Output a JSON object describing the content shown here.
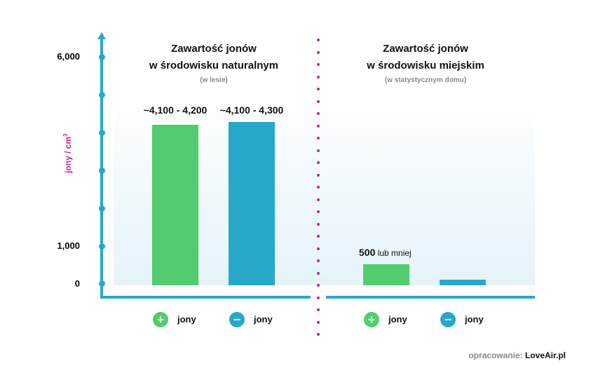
{
  "chart_data": {
    "type": "bar",
    "ylabel": "jony / cm³",
    "yticks": [
      "0",
      "1,000",
      "6,000"
    ],
    "ylim": [
      0,
      6000
    ],
    "panels": [
      {
        "title": "Zawartość jonów w środowisku naturalnym",
        "subtitle": "(w lesie)",
        "categories": [
          "+ jony",
          "− jony"
        ],
        "values": [
          4150,
          4200
        ],
        "labels": [
          "~4,100 - 4,200",
          "~4,100 - 4,300"
        ]
      },
      {
        "title": "Zawartość jonów w środowisku miejskim",
        "subtitle": "(w statystycznym domu)",
        "categories": [
          "+ jony",
          "− jony"
        ],
        "values": [
          500,
          100
        ],
        "labels": [
          "500 lub mniej",
          ""
        ]
      }
    ]
  },
  "axis": {
    "y_label": "jony / cm",
    "y_label_sup": "3",
    "ticks": {
      "t6000": "6,000",
      "t1000": "1,000",
      "t0": "0"
    }
  },
  "left": {
    "title_line1": "Zawartość jonów",
    "title_line2": "w środowisku naturalnym",
    "subtitle": "(w lesie)",
    "bar1_label": "~4,100 - 4,200",
    "bar2_label": "~4,100 - 4,300"
  },
  "right": {
    "title_line1": "Zawartość jonów",
    "title_line2": "w środowisku miejskim",
    "subtitle": "(w statystycznym domu)",
    "bar1_value": "500",
    "bar1_suffix": " lub mniej"
  },
  "legend": {
    "plus_icon": "+",
    "minus_icon": "−",
    "label": "jony"
  },
  "colors": {
    "positive": "#52cc6f",
    "negative": "#27a8cb",
    "accent": "#c2268f"
  },
  "credit": {
    "prefix": "opracowanie: ",
    "brand": "LoveAir.pl"
  }
}
